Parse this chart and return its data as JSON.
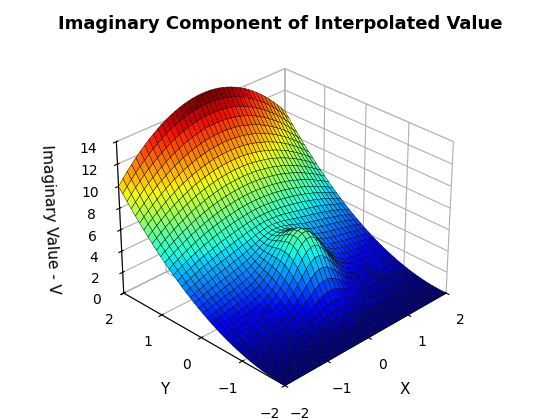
{
  "title": "Imaginary Component of Interpolated Value",
  "xlabel": "X",
  "ylabel": "Y",
  "zlabel": "Imaginary Value - V",
  "n_points": 40,
  "colormap": "jet",
  "elev": 30,
  "azim": -135,
  "background_color": "#ffffff",
  "xticks": [
    -2,
    -1,
    0,
    1,
    2
  ],
  "yticks": [
    -2,
    -1,
    0,
    1,
    2
  ],
  "zticks": [
    0,
    2,
    4,
    6,
    8,
    10,
    12,
    14
  ],
  "figsize": [
    5.6,
    4.2
  ],
  "dpi": 100
}
